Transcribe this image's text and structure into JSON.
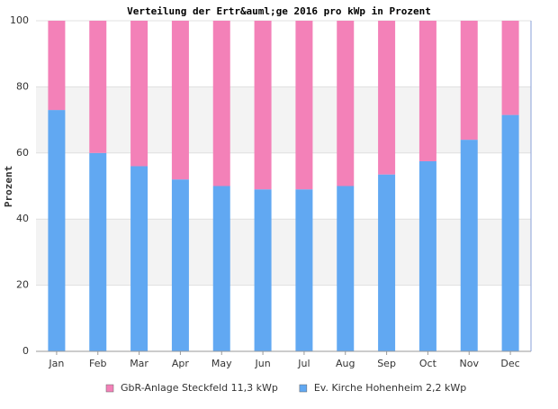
{
  "chart_data": {
    "type": "stacked_bar",
    "title": "Verteilung der Ertr&auml;ge 2016 pro kWp in Prozent",
    "y_label": "Prozent",
    "categories": [
      "Jan",
      "Feb",
      "Mar",
      "Apr",
      "May",
      "Jun",
      "Jul",
      "Aug",
      "Sep",
      "Oct",
      "Nov",
      "Dec"
    ],
    "series": [
      {
        "name": "GbR-Anlage Steckfeld 11,3 kWp",
        "color": "#f381b8",
        "values": [
          27,
          40,
          44,
          48,
          50,
          51,
          51,
          50,
          46.5,
          42.5,
          36,
          28.5
        ]
      },
      {
        "name": "Ev. Kirche Hohenheim 2,2 kWp",
        "color": "#61a8f2",
        "values": [
          73,
          60,
          56,
          52,
          50,
          49,
          49,
          50,
          53.5,
          57.5,
          64,
          71.5
        ]
      }
    ],
    "ylim": [
      0,
      100
    ],
    "yticks": [
      0,
      20,
      40,
      60,
      80,
      100
    ],
    "grid": true,
    "legend": "bottom"
  }
}
